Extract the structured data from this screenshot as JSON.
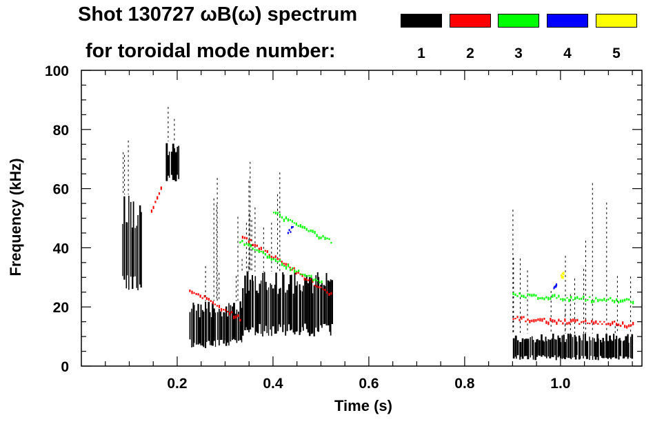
{
  "header": {
    "title_line1": "Shot 130727 ωB(ω) spectrum",
    "title_line2": "for toroidal mode number:"
  },
  "legend": [
    {
      "label": "1",
      "color": "#000000"
    },
    {
      "label": "2",
      "color": "#ff0000"
    },
    {
      "label": "3",
      "color": "#00ff00"
    },
    {
      "label": "4",
      "color": "#0000ff"
    },
    {
      "label": "5",
      "color": "#ffff00"
    }
  ],
  "chart_data": {
    "type": "heatmap",
    "title": "Shot 130727 ωB(ω) spectrum",
    "xlabel": "Time (s)",
    "ylabel": "Frequency (kHz)",
    "xlim": [
      0.0,
      1.17
    ],
    "ylim": [
      0,
      100
    ],
    "x_ticks": [
      0.2,
      0.4,
      0.6,
      0.8,
      1.0
    ],
    "x_tick_labels": [
      "0.2",
      "0.4",
      "0.6",
      "0.8",
      "1.0"
    ],
    "y_ticks": [
      0,
      20,
      40,
      60,
      80,
      100
    ],
    "y_tick_labels": [
      "0",
      "20",
      "40",
      "60",
      "80",
      "100"
    ],
    "grid": false,
    "series": [
      {
        "name": "1",
        "color": "#000000",
        "regions": [
          {
            "t": [
              0.085,
              0.125
            ],
            "f": [
              24,
              58
            ]
          },
          {
            "t": [
              0.225,
              0.335
            ],
            "f": [
              6,
              22
            ]
          },
          {
            "t": [
              0.335,
              0.525
            ],
            "f": [
              10,
              32
            ]
          },
          {
            "t": [
              0.175,
              0.205
            ],
            "f": [
              62,
              76
            ]
          },
          {
            "t": [
              0.9,
              1.15
            ],
            "f": [
              2,
              11
            ]
          }
        ]
      },
      {
        "name": "2",
        "color": "#ff0000",
        "features": [
          {
            "t": [
              0.225,
              0.33
            ],
            "f": [
              26,
              16
            ]
          },
          {
            "t": [
              0.335,
              0.52
            ],
            "f": [
              44,
              24
            ]
          },
          {
            "t": [
              0.145,
              0.165
            ],
            "f": [
              52,
              60
            ]
          },
          {
            "t": [
              0.9,
              1.15
            ],
            "f": [
              16,
              14
            ]
          }
        ]
      },
      {
        "name": "3",
        "color": "#00ff00",
        "features": [
          {
            "t": [
              0.4,
              0.52
            ],
            "f": [
              52,
              42
            ]
          },
          {
            "t": [
              0.33,
              0.5
            ],
            "f": [
              42,
              28
            ]
          },
          {
            "t": [
              0.9,
              1.15
            ],
            "f": [
              24,
              22
            ]
          }
        ]
      },
      {
        "name": "4",
        "color": "#0000ff",
        "features": [
          {
            "t": [
              0.985,
              0.99
            ],
            "f": [
              26,
              28
            ]
          },
          {
            "t": [
              0.43,
              0.44
            ],
            "f": [
              45,
              47
            ]
          }
        ]
      },
      {
        "name": "5",
        "color": "#ffff00",
        "features": [
          {
            "t": [
              1.0,
              1.005
            ],
            "f": [
              30,
              31
            ]
          }
        ]
      }
    ]
  }
}
